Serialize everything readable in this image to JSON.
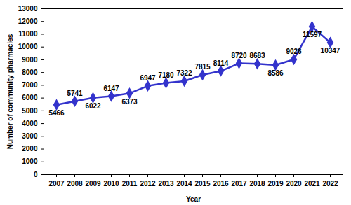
{
  "chart_data": {
    "type": "line",
    "x_label": "Year",
    "y_label": "Number of community pharmacies",
    "categories": [
      "2007",
      "2008",
      "2009",
      "2010",
      "2011",
      "2012",
      "2013",
      "2014",
      "2015",
      "2016",
      "2017",
      "2018",
      "2019",
      "2020",
      "2021",
      "2022"
    ],
    "values": [
      5466,
      5741,
      6022,
      6147,
      6373,
      6947,
      7180,
      7322,
      7815,
      8114,
      8720,
      8683,
      8586,
      9026,
      11597,
      10347
    ],
    "color": "#3333cc",
    "marker": "diamond",
    "ylim": [
      0,
      13000
    ],
    "yticks": [
      0,
      1000,
      2000,
      3000,
      4000,
      5000,
      6000,
      7000,
      8000,
      9000,
      10000,
      11000,
      12000,
      13000
    ],
    "grid": false,
    "data_labels": true
  }
}
